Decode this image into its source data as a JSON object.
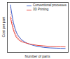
{
  "chart_data": {
    "type": "line",
    "x_label": "Number of parts",
    "y_label": "Cost per part",
    "x": [
      5,
      10,
      15,
      20,
      30,
      40,
      50,
      60,
      70,
      80,
      95
    ],
    "series": [
      {
        "name": "Conventional processes",
        "color": "#3a5fcd",
        "values": [
          95,
          60,
          40,
          30,
          20,
          15,
          12,
          10,
          9,
          8.5,
          8
        ]
      },
      {
        "name": "3D Printing",
        "color": "#e8433a",
        "values": [
          70,
          45,
          30,
          24,
          19,
          16,
          14,
          13,
          12,
          11.5,
          11
        ]
      }
    ],
    "xlim": [
      0,
      100
    ],
    "ylim": [
      0,
      100
    ],
    "xticks": [],
    "yticks": [],
    "tick_labels": false,
    "legend": "top-right"
  }
}
